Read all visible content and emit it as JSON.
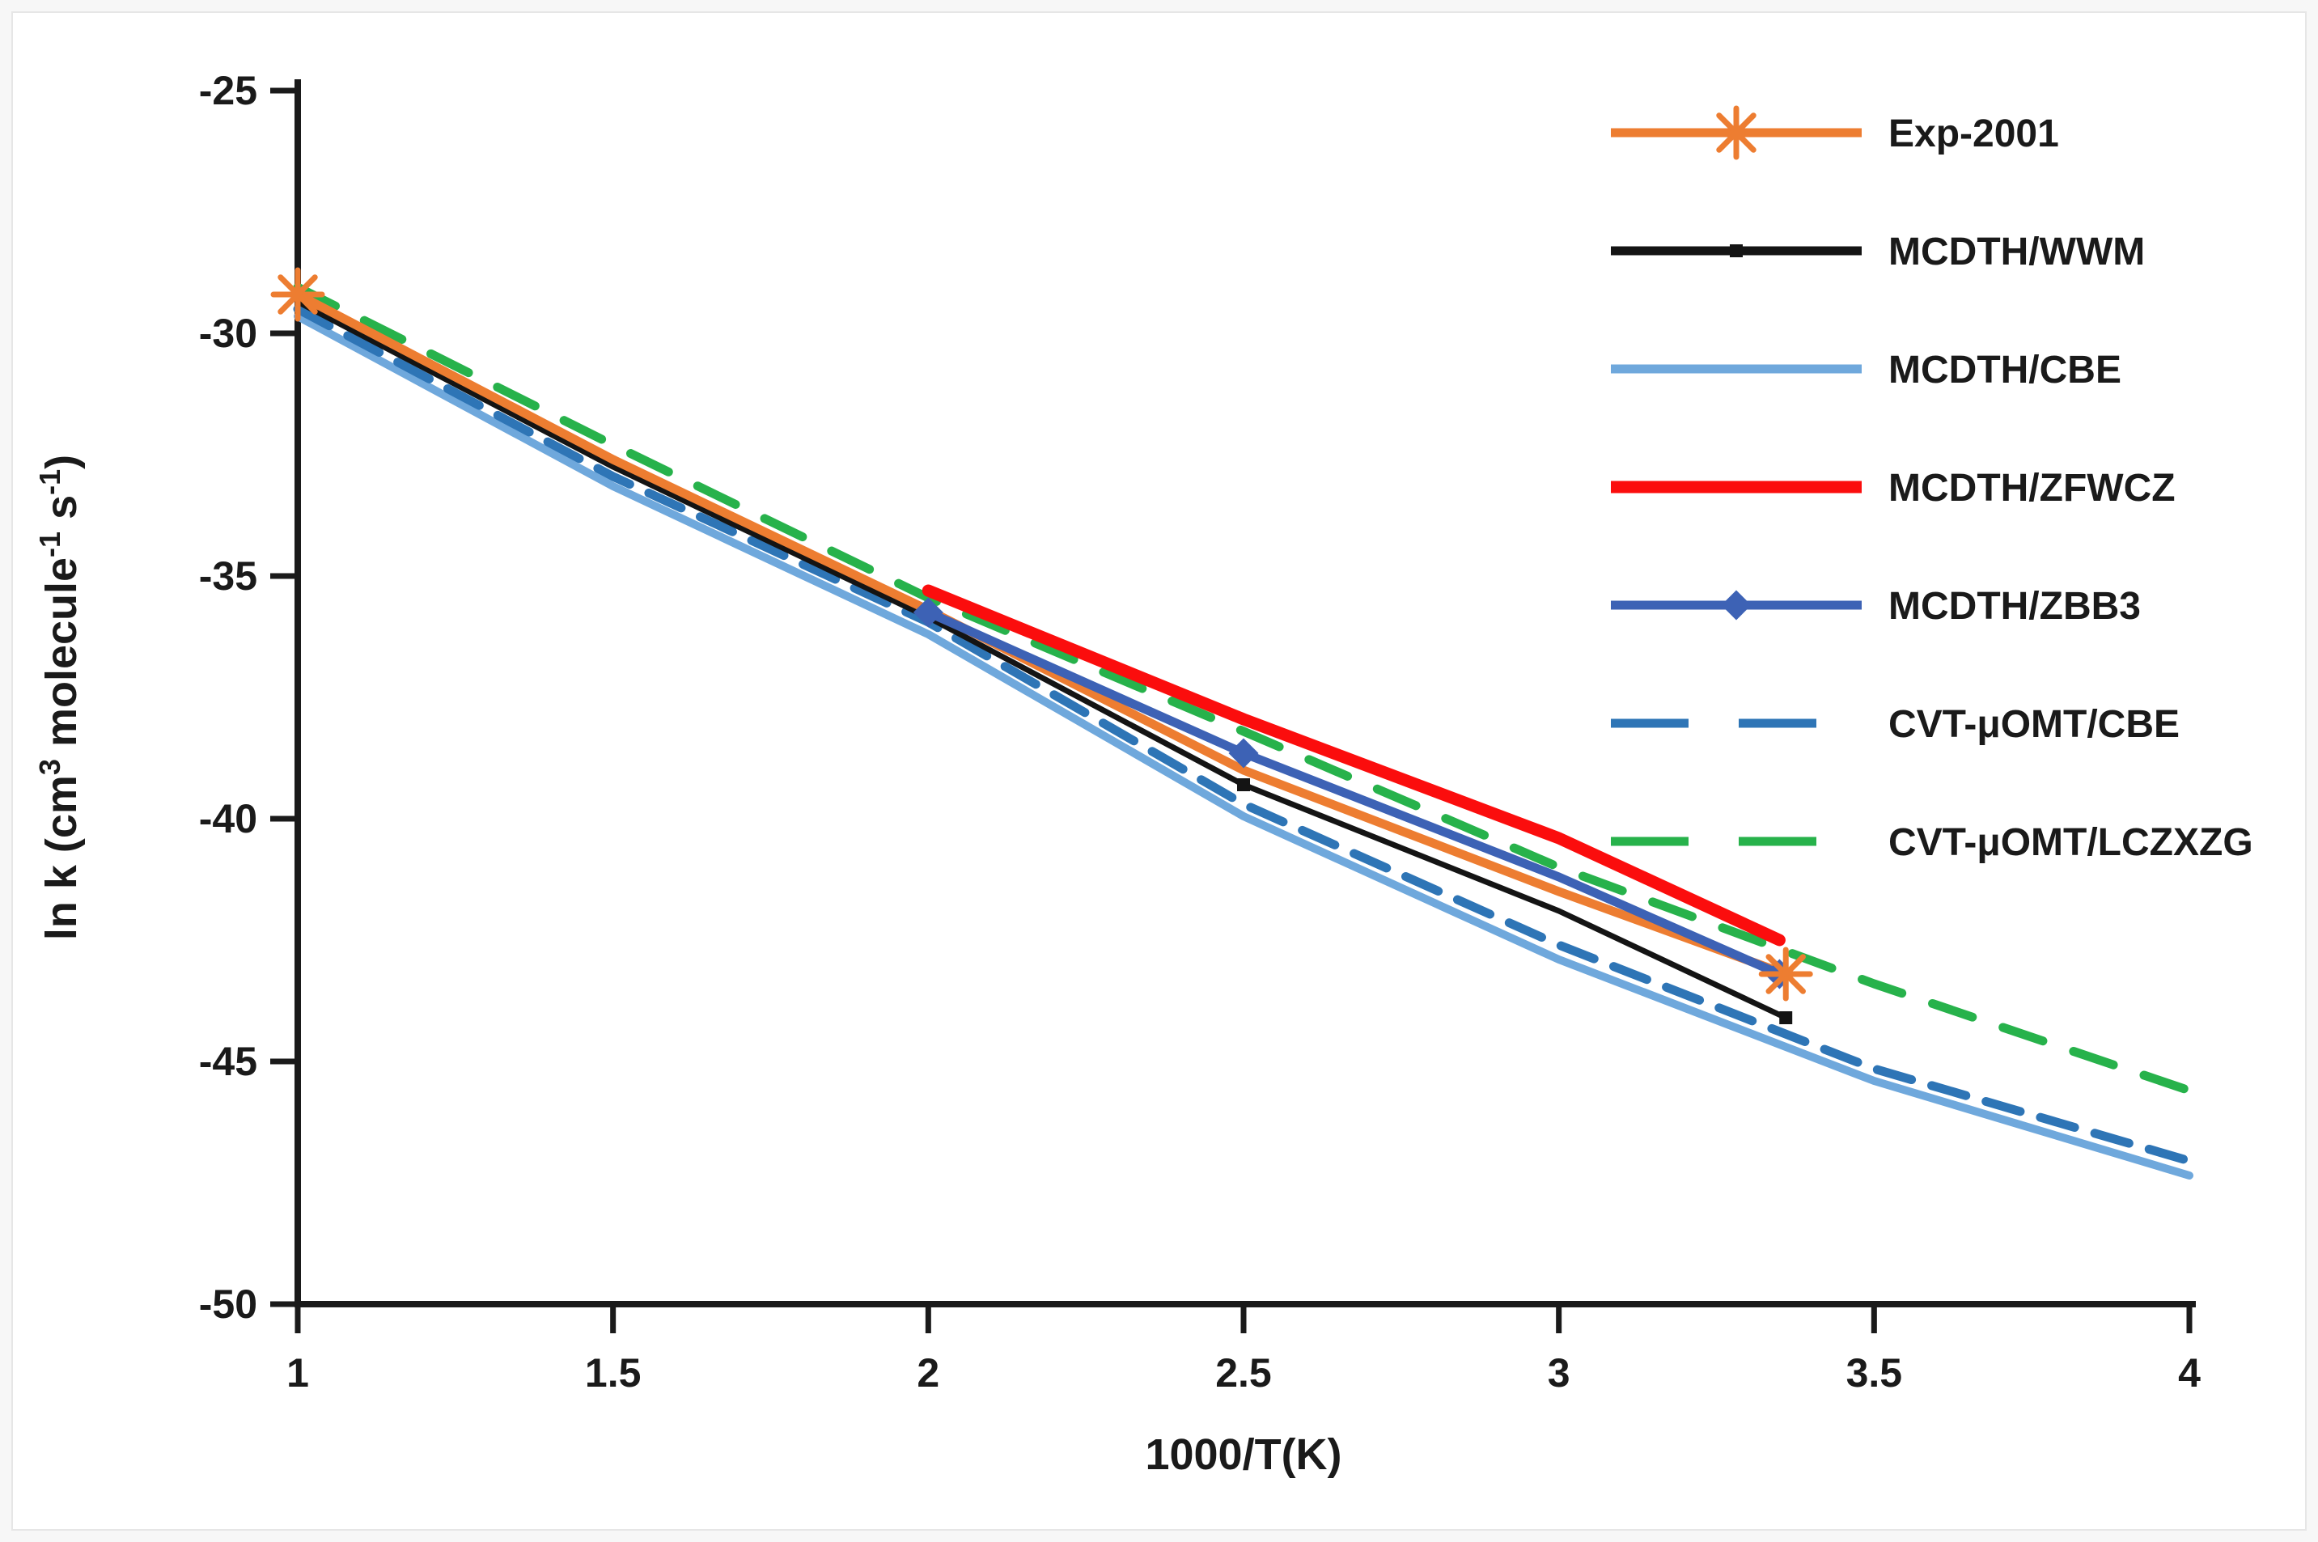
{
  "page": {
    "background": "#ffffff",
    "frame_color": "#e6e6e6",
    "axis_color": "#1a1a1a",
    "text_color": "#1a1a1a"
  },
  "chart_data": {
    "type": "line",
    "title": "",
    "xlabel": "1000/T(K)",
    "ylabel": "ln k (cm3 molecule-1 s-1)",
    "ylabel_segments": [
      {
        "text": "ln k (cm",
        "sup": false
      },
      {
        "text": "3",
        "sup": true
      },
      {
        "text": " molecule",
        "sup": false
      },
      {
        "text": "-1",
        "sup": true
      },
      {
        "text": " s",
        "sup": false
      },
      {
        "text": "-1",
        "sup": true
      },
      {
        "text": ")",
        "sup": false
      }
    ],
    "xlim": [
      1,
      4
    ],
    "ylim": [
      -50,
      -25
    ],
    "x_ticks": [
      1,
      1.5,
      2,
      2.5,
      3,
      3.5,
      4
    ],
    "x_tick_labels": [
      "1",
      "1.5",
      "2",
      "2.5",
      "3",
      "3.5",
      "4"
    ],
    "y_ticks": [
      -25,
      -30,
      -35,
      -40,
      -45,
      -50
    ],
    "y_tick_labels": [
      "-25",
      "-30",
      "-35",
      "-40",
      "-45",
      "-50"
    ],
    "grid": false,
    "legend_position": "top-right",
    "series": [
      {
        "name": "Exp-2001",
        "color": "#ED7D31",
        "width": 11,
        "dash": null,
        "marker": "asterisk",
        "marker_size": 30,
        "points": [
          [
            1,
            -29.2
          ],
          [
            1.5,
            -32.6
          ],
          [
            2,
            -35.7
          ],
          [
            2.5,
            -39.0
          ],
          [
            3,
            -41.5
          ],
          [
            3.36,
            -43.2
          ]
        ],
        "marker_points": [
          [
            1,
            -29.2
          ],
          [
            3.36,
            -43.2
          ]
        ]
      },
      {
        "name": "MCDTH/WWM",
        "color": "#141414",
        "width": 7,
        "dash": null,
        "marker": "square",
        "marker_size": 16,
        "points": [
          [
            1,
            -29.35
          ],
          [
            1.5,
            -32.75
          ],
          [
            2,
            -35.85
          ],
          [
            2.5,
            -39.3
          ],
          [
            3,
            -41.9
          ],
          [
            3.36,
            -44.1
          ]
        ],
        "marker_points": [
          [
            2.5,
            -39.3
          ],
          [
            3.36,
            -44.1
          ]
        ]
      },
      {
        "name": "MCDTH/CBE",
        "color": "#6FA8DC",
        "width": 10,
        "dash": null,
        "marker": "none",
        "marker_size": 0,
        "points": [
          [
            1,
            -29.65
          ],
          [
            1.5,
            -33.15
          ],
          [
            2,
            -36.2
          ],
          [
            2.5,
            -39.95
          ],
          [
            3,
            -42.9
          ],
          [
            3.5,
            -45.4
          ],
          [
            4,
            -47.35
          ]
        ],
        "marker_points": []
      },
      {
        "name": "MCDTH/ZFWCZ",
        "color": "#FB0D0D",
        "width": 15,
        "dash": null,
        "marker": "none",
        "marker_size": 0,
        "points": [
          [
            2,
            -35.3
          ],
          [
            2.5,
            -37.95
          ],
          [
            3,
            -40.4
          ],
          [
            3.35,
            -42.5
          ]
        ],
        "marker_points": []
      },
      {
        "name": "MCDTH/ZBB3",
        "color": "#3D62B5",
        "width": 11,
        "dash": null,
        "marker": "diamond",
        "marker_size": 19,
        "points": [
          [
            2,
            -35.75
          ],
          [
            2.5,
            -38.65
          ],
          [
            3,
            -41.2
          ],
          [
            3.35,
            -43.2
          ]
        ],
        "marker_points": [
          [
            2,
            -35.75
          ],
          [
            2.5,
            -38.65
          ],
          [
            3.35,
            -43.2
          ]
        ]
      },
      {
        "name": "CVT-μOMT/CBE",
        "color": "#2E75B6",
        "width": 11,
        "dash": [
          44,
          26
        ],
        "marker": "none",
        "marker_size": 0,
        "points": [
          [
            1,
            -29.5
          ],
          [
            1.5,
            -32.95
          ],
          [
            2,
            -35.95
          ],
          [
            2.5,
            -39.7
          ],
          [
            3,
            -42.6
          ],
          [
            3.5,
            -45.15
          ],
          [
            4,
            -47.05
          ]
        ],
        "marker_points": []
      },
      {
        "name": "CVT-μOMT/LCZXZG",
        "color": "#27B24B",
        "width": 11,
        "dash": [
          52,
          40
        ],
        "marker": "none",
        "marker_size": 0,
        "points": [
          [
            1,
            -29.05
          ],
          [
            1.5,
            -32.3
          ],
          [
            2,
            -35.45
          ],
          [
            2.5,
            -38.2
          ],
          [
            3,
            -41.0
          ],
          [
            3.5,
            -43.4
          ],
          [
            4,
            -45.6
          ]
        ],
        "marker_points": []
      }
    ],
    "draw_order": [
      2,
      5,
      6,
      1,
      0,
      4,
      3
    ],
    "marker_draw_order": [
      4,
      1,
      0
    ]
  }
}
